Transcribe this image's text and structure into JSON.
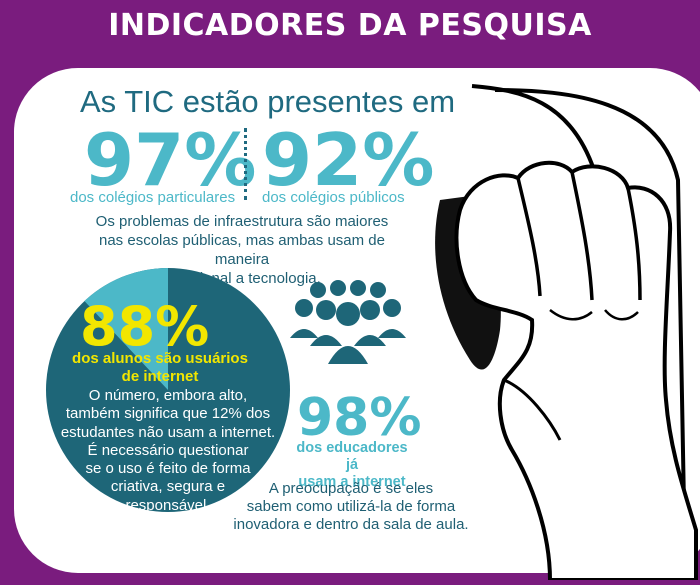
{
  "title": "INDICADORES DA PESQUISA",
  "intro": "As TIC estão presentes em",
  "stat_private": {
    "value": "97%",
    "label": "dos colégios particulares"
  },
  "stat_public": {
    "value": "92%",
    "label": "dos colégios públicos"
  },
  "infra_text": [
    "Os problemas de infraestrutura são maiores",
    "nas escolas públicas, mas ambas usam de maneira",
    "tradicional a tecnologia."
  ],
  "students": {
    "value": "88%",
    "label": [
      "dos alunos são usuários",
      "de internet"
    ],
    "text": [
      "O número, embora alto,",
      "também significa que 12% dos",
      "estudantes não usam a internet.",
      "É necessário questionar",
      "se o uso é feito de forma",
      "criativa, segura e",
      "responsável."
    ],
    "share": 0.88
  },
  "educators": {
    "value": "98%",
    "label": [
      "dos educadores já",
      "usam a internet"
    ],
    "text": [
      "A preocupação é se eles",
      "sabem como utilizá-la de forma",
      "inovadora e dentro da sala de aula."
    ]
  },
  "colors": {
    "background": "#7a1c7e",
    "teal": "#4cb8c8",
    "dark_teal": "#1e6678",
    "yellow": "#f2e600"
  },
  "icons": [
    "people-group-icon",
    "hand-on-mouse-illustration"
  ]
}
